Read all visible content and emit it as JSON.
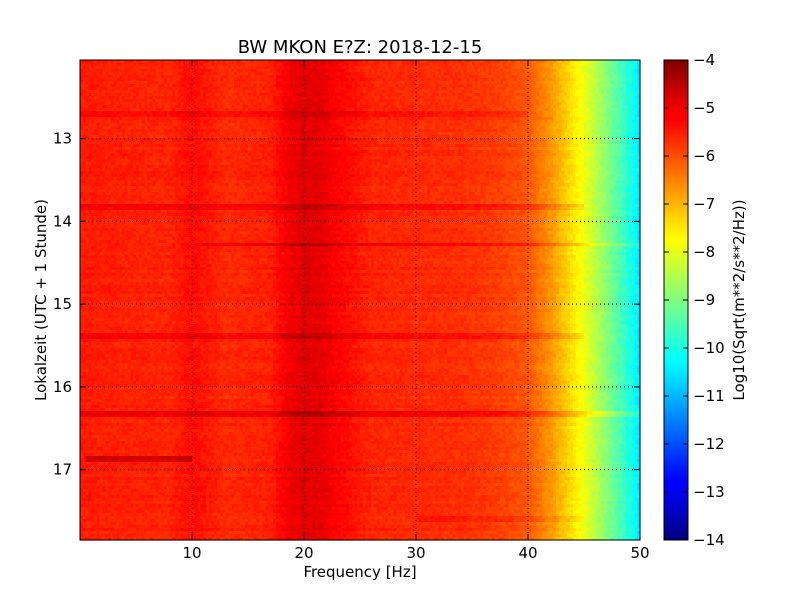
{
  "chart_data": {
    "type": "heatmap",
    "title": "BW MKON E?Z: 2018-12-15",
    "xlabel": "Frequency [Hz]",
    "ylabel": "Lokalzeit (UTC + 1 Stunde)",
    "xlim": [
      0,
      50
    ],
    "ylim": [
      17.85,
      12.05
    ],
    "y_inverted": true,
    "x_ticks": [
      10,
      20,
      30,
      40,
      50
    ],
    "x_tick_labels": [
      "10",
      "20",
      "30",
      "40",
      "50"
    ],
    "y_ticks": [
      13,
      14,
      15,
      16,
      17
    ],
    "y_tick_labels": [
      "13",
      "14",
      "15",
      "16",
      "17"
    ],
    "grid": true,
    "grid_style": "dotted",
    "colormap": "jet",
    "colorbar": {
      "label": "Log10(Sqrt(m**2/s**2/Hz))",
      "range": [
        -14,
        -4
      ],
      "ticks": [
        -4,
        -5,
        -6,
        -7,
        -8,
        -9,
        -10,
        -11,
        -12,
        -13,
        -14
      ],
      "tick_labels": [
        "−4",
        "−5",
        "−6",
        "−7",
        "−8",
        "−9",
        "−10",
        "−11",
        "−12",
        "−13",
        "−14"
      ]
    },
    "spectrum_profile": {
      "frequencies_hz": [
        0,
        3,
        8,
        10,
        11,
        13,
        17,
        18.5,
        20,
        21.5,
        23,
        26,
        30,
        34,
        36.5,
        38,
        40,
        41,
        42,
        43,
        44,
        45,
        46,
        47,
        48,
        49,
        50
      ],
      "values": [
        -5.5,
        -5.55,
        -5.6,
        -5.35,
        -5.45,
        -5.65,
        -5.55,
        -5.15,
        -4.95,
        -5.0,
        -5.25,
        -5.6,
        -5.65,
        -5.7,
        -5.8,
        -5.9,
        -6.1,
        -6.4,
        -6.7,
        -7.1,
        -7.5,
        -7.9,
        -8.4,
        -8.9,
        -9.4,
        -9.9,
        -10.5
      ]
    },
    "time_features": [
      {
        "time": 12.7,
        "freq_range": [
          0,
          40
        ],
        "delta": 0.25
      },
      {
        "time": 13.82,
        "freq_range": [
          0,
          45
        ],
        "delta": 0.35
      },
      {
        "time": 14.28,
        "freq_range": [
          11,
          50
        ],
        "delta": 0.45
      },
      {
        "time": 15.38,
        "freq_range": [
          0,
          45
        ],
        "delta": 0.35
      },
      {
        "time": 16.32,
        "freq_range": [
          0,
          50
        ],
        "delta": 0.5
      },
      {
        "time": 16.88,
        "freq_range": [
          0.5,
          10
        ],
        "delta": 0.8
      },
      {
        "time": 17.6,
        "freq_range": [
          30,
          45
        ],
        "delta": 0.25
      }
    ]
  }
}
